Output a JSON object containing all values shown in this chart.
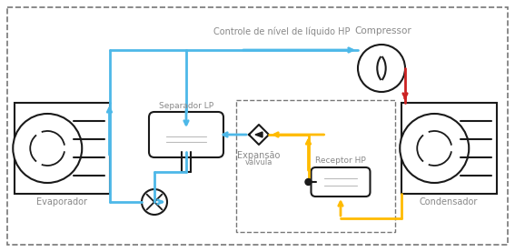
{
  "bg_color": "#ffffff",
  "black": "#1a1a1a",
  "blue": "#4db8e8",
  "red": "#cc2222",
  "orange": "#ffbb00",
  "gray": "#888888",
  "label_evaporador": "Evaporador",
  "label_condensador": "Condensador",
  "label_compressor": "Compressor",
  "label_separador": "Separador LP",
  "label_expansao": "Expansão",
  "label_expansao2": "válvula",
  "label_receptor": "Receptor HP",
  "label_controle": "Controle de nível de líquido HP",
  "figsize": [
    5.67,
    2.77
  ],
  "dpi": 100
}
